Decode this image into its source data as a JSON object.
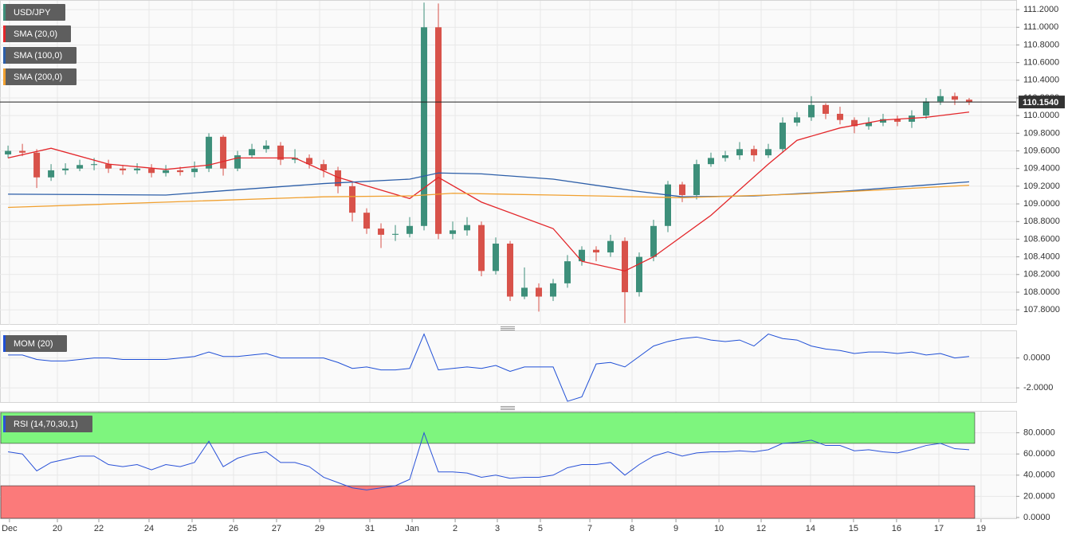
{
  "chart_data": [
    {
      "type": "candlestick",
      "title": "USD/JPY",
      "up_color": "#3d8f7a",
      "down_color": "#d8524a",
      "open": [
        109.56,
        109.6,
        109.58,
        109.3,
        109.38,
        109.4,
        109.44,
        109.45,
        109.4,
        109.38,
        109.4,
        109.35,
        109.38,
        109.36,
        109.4,
        109.76,
        109.4,
        109.55,
        109.62,
        109.66,
        109.5,
        109.52,
        109.45,
        109.38,
        109.2,
        108.9,
        108.72,
        108.65,
        108.66,
        108.75,
        111.0,
        108.66,
        108.7,
        108.76,
        108.24,
        108.55,
        107.95,
        108.05,
        107.95,
        108.1,
        108.35,
        108.48,
        108.45,
        108.58,
        108.0,
        108.4,
        108.75,
        109.22,
        109.1,
        109.45,
        109.52,
        109.55,
        109.62,
        109.55,
        109.62,
        109.92,
        109.98,
        110.12,
        110.02,
        109.95,
        109.88,
        109.92,
        109.96,
        109.93,
        110.0,
        110.16,
        110.22,
        110.18
      ],
      "high": [
        109.66,
        109.68,
        109.62,
        109.45,
        109.46,
        109.5,
        109.52,
        109.5,
        109.44,
        109.46,
        109.45,
        109.44,
        109.42,
        109.48,
        109.8,
        109.78,
        109.6,
        109.68,
        109.72,
        109.7,
        109.62,
        109.56,
        109.5,
        109.42,
        109.25,
        108.95,
        108.78,
        108.76,
        108.85,
        111.28,
        111.27,
        108.8,
        108.85,
        108.8,
        108.62,
        108.58,
        108.28,
        108.1,
        108.15,
        108.42,
        108.52,
        108.52,
        108.65,
        108.62,
        108.45,
        108.82,
        109.26,
        109.25,
        109.5,
        109.58,
        109.6,
        109.7,
        109.66,
        109.68,
        109.98,
        110.04,
        110.22,
        110.14,
        110.1,
        109.98,
        109.98,
        110.02,
        110.0,
        110.06,
        110.2,
        110.3,
        110.26,
        110.2
      ],
      "low": [
        109.52,
        109.54,
        109.18,
        109.26,
        109.33,
        109.37,
        109.38,
        109.35,
        109.33,
        109.34,
        109.3,
        109.31,
        109.32,
        109.3,
        109.36,
        109.32,
        109.37,
        109.52,
        109.58,
        109.44,
        109.46,
        109.4,
        109.3,
        109.12,
        108.8,
        108.66,
        108.5,
        108.58,
        108.62,
        108.7,
        108.6,
        108.6,
        108.64,
        108.18,
        108.2,
        107.9,
        107.92,
        107.78,
        107.9,
        108.05,
        108.3,
        108.35,
        108.4,
        107.65,
        107.95,
        108.35,
        108.68,
        109.02,
        109.05,
        109.42,
        109.48,
        109.5,
        109.48,
        109.52,
        109.58,
        109.88,
        109.94,
        109.96,
        109.9,
        109.8,
        109.84,
        109.88,
        109.88,
        109.86,
        109.96,
        110.12,
        110.12,
        110.12
      ],
      "close": [
        109.6,
        109.58,
        109.3,
        109.38,
        109.4,
        109.44,
        109.45,
        109.4,
        109.38,
        109.4,
        109.35,
        109.38,
        109.36,
        109.4,
        109.76,
        109.4,
        109.55,
        109.62,
        109.66,
        109.5,
        109.52,
        109.45,
        109.38,
        109.2,
        108.9,
        108.72,
        108.65,
        108.66,
        108.75,
        111.0,
        108.66,
        108.7,
        108.76,
        108.24,
        108.55,
        107.95,
        108.05,
        107.95,
        108.1,
        108.35,
        108.48,
        108.45,
        108.58,
        108.0,
        108.4,
        108.75,
        109.22,
        109.1,
        109.45,
        109.52,
        109.55,
        109.62,
        109.55,
        109.62,
        109.92,
        109.98,
        110.12,
        110.02,
        109.95,
        109.88,
        109.92,
        109.96,
        109.93,
        110.0,
        110.16,
        110.22,
        110.18,
        110.154
      ],
      "series": [
        {
          "name": "SMA (20,0)",
          "color": "#e3262a",
          "x": [
            0,
            3,
            7,
            11,
            14,
            16,
            20,
            23,
            28,
            30,
            33,
            38,
            40,
            43,
            45,
            49,
            53,
            55,
            58,
            61,
            64,
            67
          ],
          "values": [
            109.52,
            109.63,
            109.45,
            109.39,
            109.44,
            109.52,
            109.52,
            109.3,
            109.06,
            109.3,
            109.02,
            108.72,
            108.35,
            108.24,
            108.4,
            108.87,
            109.45,
            109.72,
            109.86,
            109.95,
            109.98,
            110.04
          ]
        },
        {
          "name": "SMA (100,0)",
          "color": "#2c5ea8",
          "x": [
            0,
            11,
            16,
            22,
            28,
            30,
            33,
            38,
            44,
            47,
            52,
            58,
            67
          ],
          "values": [
            109.11,
            109.1,
            109.16,
            109.23,
            109.28,
            109.35,
            109.34,
            109.28,
            109.14,
            109.08,
            109.09,
            109.14,
            109.25
          ]
        },
        {
          "name": "SMA (200,0)",
          "color": "#f0a030",
          "x": [
            0,
            11,
            22,
            28,
            31,
            38,
            47,
            55,
            67
          ],
          "values": [
            108.96,
            109.02,
            109.08,
            109.09,
            109.12,
            109.1,
            109.07,
            109.11,
            109.21
          ]
        }
      ],
      "last_price": {
        "value": 110.154,
        "label": "110.1540"
      },
      "xlim": [
        -0.56,
        70.28
      ],
      "ylim": [
        107.63,
        111.3
      ],
      "yticks": [
        {
          "value": 107.8,
          "label": "107.8000"
        },
        {
          "value": 108.0,
          "label": "108.0000"
        },
        {
          "value": 108.2,
          "label": "108.2000"
        },
        {
          "value": 108.4,
          "label": "108.4000"
        },
        {
          "value": 108.6,
          "label": "108.6000"
        },
        {
          "value": 108.8,
          "label": "108.8000"
        },
        {
          "value": 109.0,
          "label": "109.0000"
        },
        {
          "value": 109.2,
          "label": "109.2000"
        },
        {
          "value": 109.4,
          "label": "109.4000"
        },
        {
          "value": 109.6,
          "label": "109.6000"
        },
        {
          "value": 109.8,
          "label": "109.8000"
        },
        {
          "value": 110.0,
          "label": "110.0000"
        },
        {
          "value": 110.2,
          "label": "110.2000"
        },
        {
          "value": 110.4,
          "label": "110.4000"
        },
        {
          "value": 110.6,
          "label": "110.6000"
        },
        {
          "value": 110.8,
          "label": "110.8000"
        },
        {
          "value": 111.0,
          "label": "111.0000"
        },
        {
          "value": 111.2,
          "label": "111.2000"
        }
      ],
      "grid": true
    },
    {
      "type": "line",
      "series": [
        {
          "name": "MOM (20)",
          "color": "#1f4fd6",
          "values": [
            0.2,
            0.2,
            -0.1,
            -0.2,
            -0.2,
            -0.1,
            0.0,
            0.0,
            -0.1,
            -0.1,
            -0.1,
            -0.1,
            0.0,
            0.1,
            0.4,
            0.1,
            0.1,
            0.2,
            0.3,
            0.0,
            0.0,
            0.0,
            0.0,
            -0.3,
            -0.7,
            -0.6,
            -0.8,
            -0.8,
            -0.7,
            1.6,
            -0.8,
            -0.7,
            -0.6,
            -0.7,
            -0.5,
            -0.9,
            -0.6,
            -0.6,
            -0.6,
            -2.9,
            -2.6,
            -0.4,
            -0.3,
            -0.6,
            0.1,
            0.8,
            1.1,
            1.3,
            1.4,
            1.2,
            1.1,
            1.2,
            0.8,
            1.6,
            1.3,
            1.2,
            0.8,
            0.6,
            0.5,
            0.3,
            0.4,
            0.4,
            0.3,
            0.4,
            0.2,
            0.3,
            0.0,
            0.1
          ]
        }
      ],
      "xlim": [
        -0.56,
        70.28
      ],
      "ylim": [
        -2.95,
        1.79
      ],
      "yticks": [
        {
          "value": -2,
          "label": "-2.0000"
        },
        {
          "value": 0,
          "label": "0.0000"
        }
      ],
      "grid": true
    },
    {
      "type": "line",
      "series": [
        {
          "name": "RSI (14,70,30,1)",
          "color": "#2a52d8",
          "values": [
            62,
            60,
            44,
            52,
            55,
            58,
            58,
            50,
            48,
            50,
            45,
            50,
            48,
            52,
            72,
            48,
            56,
            60,
            62,
            52,
            52,
            48,
            38,
            33,
            28,
            26,
            28,
            30,
            36,
            80,
            43,
            43,
            42,
            38,
            40,
            37,
            38,
            38,
            40,
            47,
            50,
            50,
            52,
            40,
            50,
            58,
            62,
            58,
            61,
            62,
            62,
            63,
            62,
            64,
            70,
            71,
            73,
            68,
            68,
            63,
            64,
            62,
            61,
            64,
            68,
            70,
            65,
            64
          ]
        }
      ],
      "overbought": 70,
      "oversold": 30,
      "overbought_color": "#7ef57e",
      "oversold_color": "#fb7a7a",
      "xlim": [
        -0.56,
        70.28
      ],
      "ylim": [
        0,
        100
      ],
      "yticks": [
        {
          "value": 0,
          "label": "0.0000"
        },
        {
          "value": 20,
          "label": "20.0000"
        },
        {
          "value": 40,
          "label": "40.0000"
        },
        {
          "value": 60,
          "label": "60.0000"
        },
        {
          "value": 80,
          "label": "80.0000"
        }
      ],
      "xticks": [
        {
          "value": 0.1,
          "label": "Dec"
        },
        {
          "value": 3.44,
          "label": "20"
        },
        {
          "value": 6.33,
          "label": "22"
        },
        {
          "value": 9.83,
          "label": "24"
        },
        {
          "value": 12.83,
          "label": "25"
        },
        {
          "value": 15.72,
          "label": "26"
        },
        {
          "value": 18.72,
          "label": "27"
        },
        {
          "value": 21.72,
          "label": "29"
        },
        {
          "value": 25.22,
          "label": "31"
        },
        {
          "value": 28.17,
          "label": "Jan"
        },
        {
          "value": 31.17,
          "label": "2"
        },
        {
          "value": 34.11,
          "label": "3"
        },
        {
          "value": 37.11,
          "label": "5"
        },
        {
          "value": 40.56,
          "label": "7"
        },
        {
          "value": 43.5,
          "label": "8"
        },
        {
          "value": 46.56,
          "label": "9"
        },
        {
          "value": 49.56,
          "label": "10"
        },
        {
          "value": 52.5,
          "label": "12"
        },
        {
          "value": 55.94,
          "label": "14"
        },
        {
          "value": 58.94,
          "label": "15"
        },
        {
          "value": 61.94,
          "label": "16"
        },
        {
          "value": 64.89,
          "label": "17"
        },
        {
          "value": 67.83,
          "label": "19"
        }
      ],
      "grid": true
    }
  ]
}
